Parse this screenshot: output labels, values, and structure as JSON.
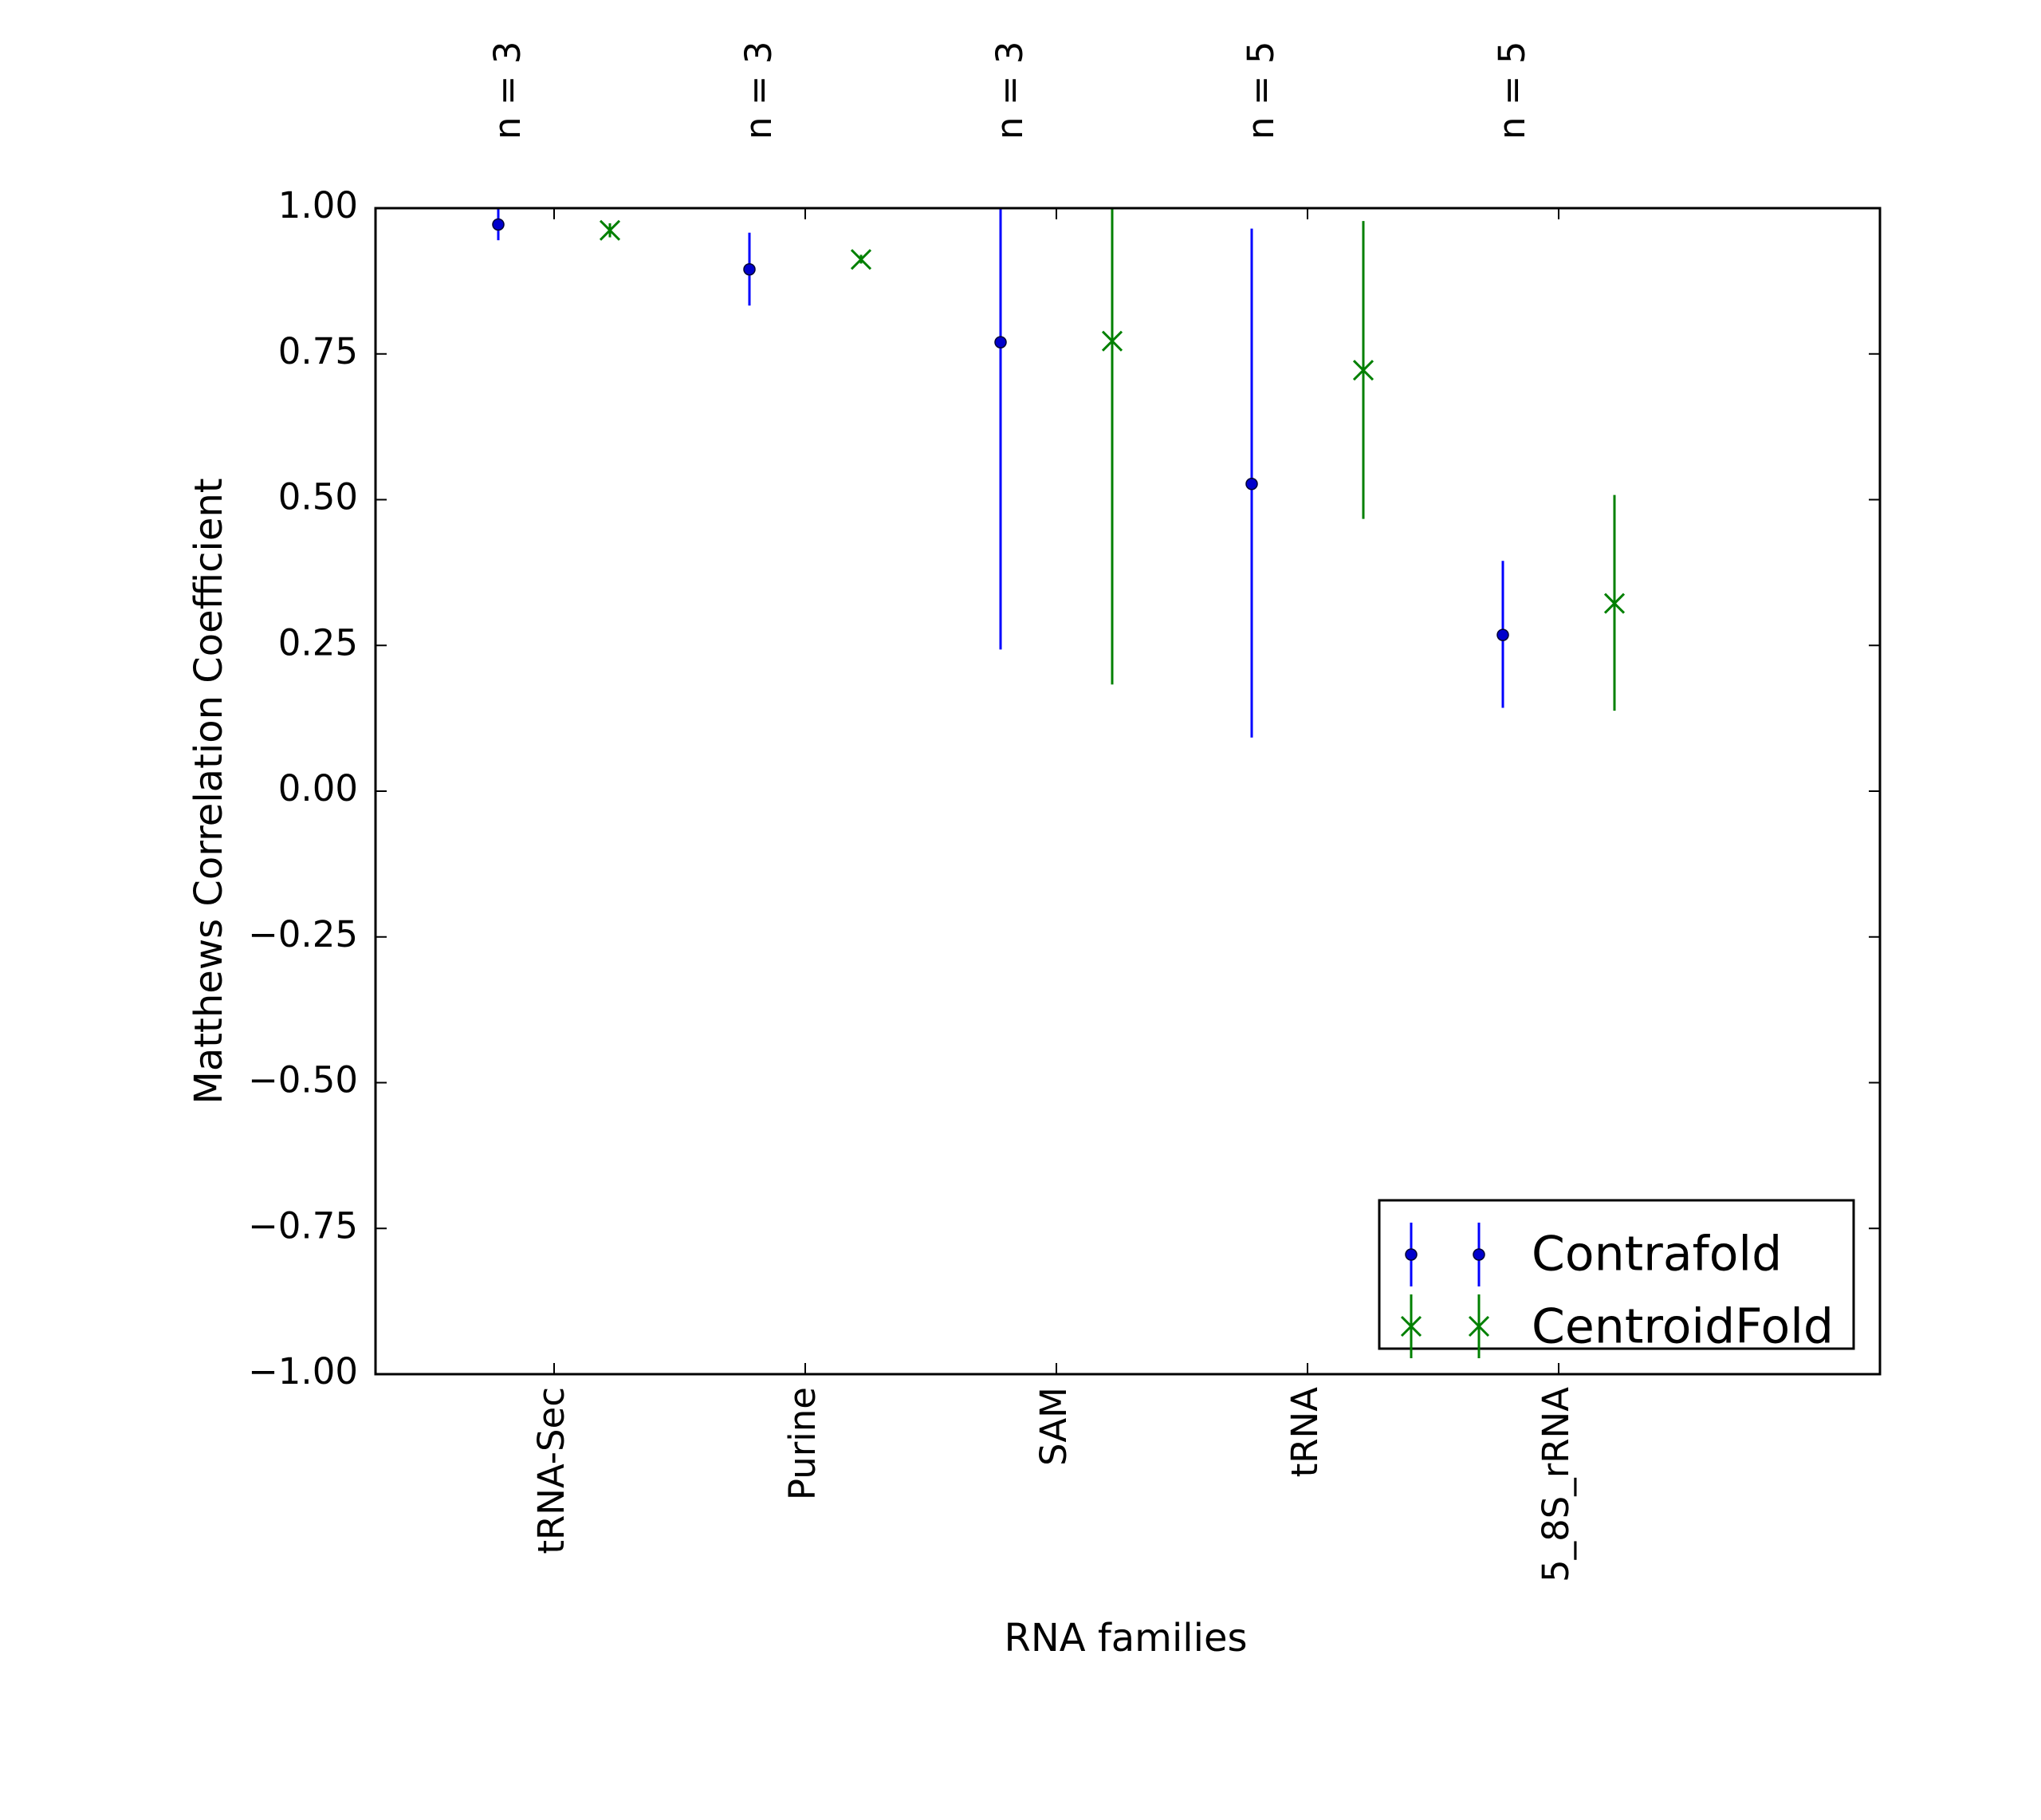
{
  "chart_data": {
    "type": "scatter",
    "xlabel": "RNA families",
    "ylabel": "Matthews Correlation Coefficient",
    "ylim": [
      -1.0,
      1.0
    ],
    "yticks": [
      "1.00",
      "0.75",
      "0.50",
      "0.25",
      "0.00",
      "−0.25",
      "−0.50",
      "−0.75",
      "−1.00"
    ],
    "ytick_values": [
      1.0,
      0.75,
      0.5,
      0.25,
      0.0,
      -0.25,
      -0.5,
      -0.75,
      -1.0
    ],
    "categories": [
      "tRNA-Sec",
      "Purine",
      "SAM",
      "tRNA",
      "5_8S_rRNA"
    ],
    "counts": [
      "n = 3",
      "n = 3",
      "n = 3",
      "n = 5",
      "n = 5"
    ],
    "series": [
      {
        "name": "Contrafold",
        "color": "#0000ff",
        "marker": "dot",
        "values": [
          0.972,
          0.895,
          0.77,
          0.527,
          0.268
        ],
        "lower": [
          0.945,
          0.833,
          0.243,
          0.092,
          0.143
        ],
        "upper": [
          1.0,
          0.958,
          1.0,
          0.965,
          0.395
        ]
      },
      {
        "name": "CentroidFold",
        "color": "#008000",
        "marker": "x",
        "values": [
          0.962,
          0.912,
          0.772,
          0.722,
          0.322
        ],
        "lower": [
          0.95,
          0.905,
          0.183,
          0.467,
          0.138
        ],
        "upper": [
          0.974,
          0.92,
          1.0,
          0.978,
          0.508
        ]
      }
    ],
    "legend_position": "lower-right",
    "grid": false
  }
}
